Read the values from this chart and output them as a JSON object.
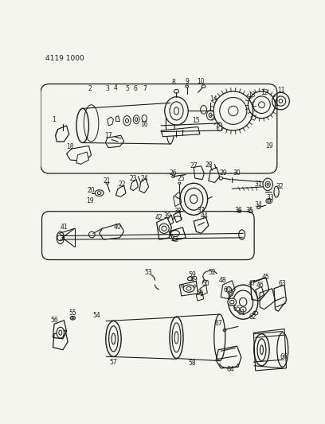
{
  "bg_color": "#f5f5f0",
  "line_color": "#1a1a1a",
  "fig_width": 4.08,
  "fig_height": 5.33,
  "dpi": 100,
  "header_text": "4119 1000"
}
